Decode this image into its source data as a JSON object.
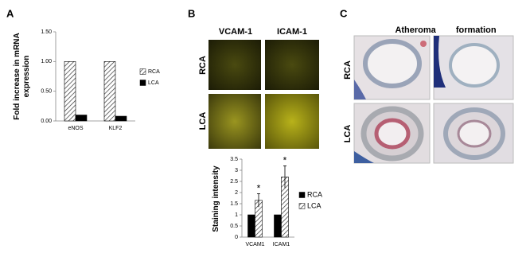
{
  "chart_data": [
    {
      "type": "bar",
      "y_label": "Fold increase in mRNA expression",
      "categories": [
        "eNOS",
        "KLF2"
      ],
      "series": [
        {
          "name": "RCA",
          "color": "#ffffff",
          "hatch": true,
          "values": [
            1.0,
            1.0
          ]
        },
        {
          "name": "LCA",
          "color": "#000000",
          "hatch": false,
          "values": [
            0.1,
            0.08
          ]
        }
      ],
      "ylim": [
        0,
        1.5
      ],
      "yticks": [
        {
          "value": 0,
          "label": "0.00"
        },
        {
          "value": 0.5,
          "label": "0.50"
        },
        {
          "value": 1,
          "label": "1.00"
        },
        {
          "value": 1.5,
          "label": "1.50"
        }
      ]
    },
    {
      "type": "bar",
      "y_label": "Staining intensity",
      "categories": [
        "VCAM1",
        "ICAM1"
      ],
      "series": [
        {
          "name": "RCA",
          "color": "#000000",
          "hatch": false,
          "values": [
            1.0,
            1.0
          ]
        },
        {
          "name": "LCA",
          "color": "#ffffff",
          "hatch": true,
          "values": [
            1.65,
            2.7
          ],
          "errors": [
            0.3,
            0.5
          ]
        }
      ],
      "annotations": [
        "*",
        "*"
      ],
      "ylim": [
        0,
        3.5
      ],
      "yticks": [
        0,
        0.5,
        1,
        1.5,
        2,
        2.5,
        3,
        3.5
      ]
    }
  ],
  "panel_labels": [
    "A",
    "B",
    "C"
  ],
  "panel_b": {
    "columns": [
      "VCAM-1",
      "ICAM-1"
    ],
    "rows": [
      "RCA",
      "LCA"
    ]
  },
  "panel_c": {
    "title": "Atheroma formation",
    "rows": [
      "RCA",
      "LCA"
    ]
  }
}
